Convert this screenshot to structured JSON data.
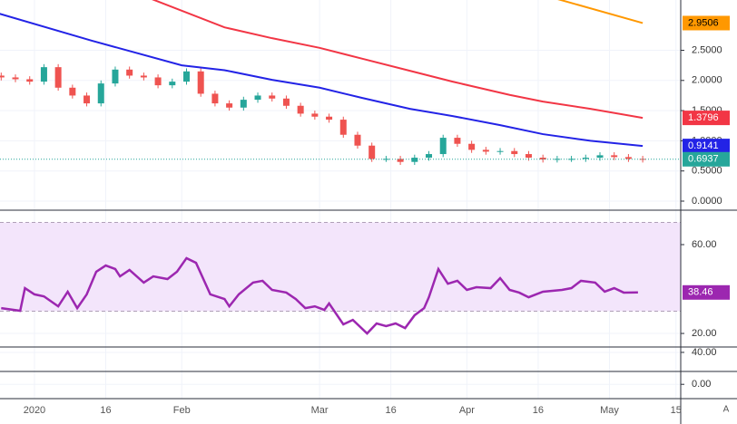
{
  "chart_data": [
    {
      "type": "candlestick",
      "x": [
        -7,
        -4,
        -1,
        2,
        5,
        8,
        11,
        14,
        17,
        20,
        23,
        26,
        29,
        32,
        35,
        38,
        41,
        44,
        47,
        50,
        53,
        56,
        59,
        62,
        65,
        68,
        71,
        74,
        77,
        80,
        83,
        86,
        89,
        92,
        95,
        98,
        101,
        104,
        107,
        110,
        113,
        116,
        119,
        122,
        125,
        128
      ],
      "open": [
        2.08,
        2.05,
        2.02,
        1.98,
        2.22,
        1.88,
        1.75,
        1.62,
        1.95,
        2.18,
        2.08,
        2.05,
        1.92,
        1.98,
        2.15,
        1.78,
        1.62,
        1.55,
        1.68,
        1.75,
        1.7,
        1.58,
        1.45,
        1.4,
        1.35,
        1.1,
        0.92,
        0.7,
        0.7,
        0.65,
        0.72,
        0.78,
        1.05,
        0.95,
        0.85,
        0.82,
        0.83,
        0.78,
        0.72,
        0.69,
        0.7,
        0.7,
        0.72,
        0.76,
        0.73,
        0.7
      ],
      "high": [
        2.13,
        2.1,
        2.07,
        2.27,
        2.27,
        1.93,
        1.8,
        2.0,
        2.23,
        2.23,
        2.13,
        2.1,
        2.03,
        2.2,
        2.2,
        1.83,
        1.67,
        1.73,
        1.8,
        1.8,
        1.75,
        1.63,
        1.5,
        1.45,
        1.4,
        1.15,
        0.97,
        0.75,
        0.75,
        0.77,
        0.83,
        1.1,
        1.1,
        1.0,
        0.9,
        0.88,
        0.88,
        0.83,
        0.77,
        0.75,
        0.75,
        0.77,
        0.81,
        0.81,
        0.78,
        0.75
      ],
      "low": [
        2.0,
        1.97,
        1.93,
        1.93,
        1.83,
        1.7,
        1.57,
        1.57,
        1.9,
        2.03,
        2.0,
        1.87,
        1.87,
        1.93,
        1.73,
        1.57,
        1.5,
        1.5,
        1.63,
        1.65,
        1.53,
        1.4,
        1.35,
        1.3,
        1.05,
        0.87,
        0.65,
        0.65,
        0.6,
        0.6,
        0.67,
        0.73,
        0.9,
        0.8,
        0.77,
        0.77,
        0.73,
        0.67,
        0.64,
        0.64,
        0.65,
        0.65,
        0.67,
        0.68,
        0.65,
        0.64
      ],
      "close": [
        2.05,
        2.02,
        1.98,
        2.22,
        1.88,
        1.75,
        1.62,
        1.95,
        2.18,
        2.08,
        2.05,
        1.92,
        1.98,
        2.15,
        1.78,
        1.62,
        1.55,
        1.68,
        1.75,
        1.7,
        1.58,
        1.45,
        1.4,
        1.35,
        1.1,
        0.92,
        0.7,
        0.7,
        0.65,
        0.72,
        0.78,
        1.05,
        0.95,
        0.85,
        0.82,
        0.83,
        0.78,
        0.72,
        0.69,
        0.7,
        0.7,
        0.72,
        0.76,
        0.73,
        0.7,
        0.6937
      ],
      "up_color": "#26a69a",
      "down_color": "#ef5350",
      "series": [
        {
          "color": "#ff9800",
          "x": [
            110,
            128
          ],
          "values": [
            3.35,
            2.9506
          ]
        },
        {
          "color": "#f23645",
          "x": [
            23,
            40,
            50,
            60,
            69,
            79,
            88,
            100,
            107,
            117,
            128
          ],
          "values": [
            3.4,
            2.88,
            2.7,
            2.54,
            2.36,
            2.16,
            1.98,
            1.76,
            1.65,
            1.53,
            1.3796
          ]
        },
        {
          "color": "#2323e6",
          "x": [
            -8,
            12,
            31,
            40,
            50,
            60,
            69,
            79,
            88,
            98,
            107,
            117,
            128
          ],
          "values": [
            3.12,
            2.66,
            2.25,
            2.17,
            2.01,
            1.88,
            1.71,
            1.53,
            1.41,
            1.26,
            1.11,
            1.0,
            0.9141
          ]
        }
      ],
      "xlim": [
        -7.25,
        136
      ],
      "xticks": [
        {
          "value": 0,
          "label": "2020"
        },
        {
          "value": 15,
          "label": "16"
        },
        {
          "value": 31,
          "label": "Feb"
        },
        {
          "value": 60,
          "label": "Mar"
        },
        {
          "value": 75,
          "label": "16"
        },
        {
          "value": 91,
          "label": "Apr"
        },
        {
          "value": 106,
          "label": "16"
        },
        {
          "value": 121,
          "label": "May"
        },
        {
          "value": 135,
          "label": "15"
        }
      ],
      "ylim": [
        -0.15,
        3.333
      ],
      "yticks": [
        {
          "value": 0,
          "label": "0.0000"
        },
        {
          "value": 0.5,
          "label": "0.5000"
        },
        {
          "value": 1,
          "label": "1.0000"
        },
        {
          "value": 1.5,
          "label": "1.5000"
        },
        {
          "value": 2,
          "label": "2.0000"
        },
        {
          "value": 2.5,
          "label": "2.5000"
        }
      ]
    },
    {
      "type": "line",
      "x": [
        -7,
        -3,
        -2,
        0,
        2,
        5,
        7,
        9,
        11,
        13,
        15,
        17,
        18,
        20,
        23,
        25,
        28,
        30,
        32,
        34,
        37,
        40,
        41,
        43,
        46,
        48,
        50,
        53,
        55,
        57,
        59,
        61,
        62,
        65,
        67,
        70,
        72,
        74,
        76,
        78,
        80,
        82,
        83,
        85,
        87,
        89,
        91,
        93,
        96,
        98,
        100,
        102,
        104,
        107,
        111,
        113,
        115,
        118,
        120,
        122,
        124,
        127
      ],
      "values": [
        31.4,
        30.2,
        40.4,
        37.6,
        36.7,
        32.2,
        38.8,
        31.4,
        37.6,
        47.8,
        50.6,
        49.0,
        45.7,
        48.6,
        42.9,
        45.7,
        44.5,
        47.8,
        53.9,
        51.8,
        37.6,
        35.5,
        32.2,
        37.6,
        42.9,
        43.7,
        39.6,
        38.4,
        35.5,
        31.4,
        32.2,
        30.6,
        33.5,
        24.1,
        26.1,
        20.0,
        24.5,
        23.3,
        24.5,
        22.4,
        28.2,
        31.4,
        36.3,
        49.0,
        42.4,
        43.7,
        39.6,
        40.8,
        40.4,
        44.9,
        39.6,
        38.4,
        36.3,
        38.8,
        39.6,
        40.4,
        43.7,
        42.9,
        38.8,
        40.4,
        38.4,
        38.46
      ],
      "color": "#9c27b0",
      "band": [
        30,
        70
      ],
      "band_color": "#f3e5fb",
      "ylim": [
        13.9,
        75.5
      ],
      "yticks": [
        {
          "value": 20,
          "label": "20.00"
        },
        {
          "value": 60,
          "label": "60.00"
        }
      ]
    },
    {
      "type": "empty",
      "ylim": [
        0,
        51.3
      ],
      "yticks": [
        {
          "value": 40,
          "label": "40.00"
        }
      ]
    },
    {
      "type": "empty",
      "ylim": [
        -1,
        0.9
      ],
      "yticks": [
        {
          "value": 0,
          "label": "0.00"
        }
      ]
    }
  ],
  "ui": {
    "auto_button": "A"
  }
}
